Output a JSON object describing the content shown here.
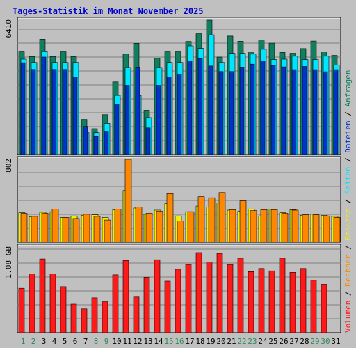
{
  "chart_data": {
    "type": "bar",
    "title": "Tages-Statistik im Monat November 2025",
    "categories": [
      "1",
      "2",
      "3",
      "4",
      "5",
      "6",
      "7",
      "8",
      "9",
      "10",
      "11",
      "12",
      "13",
      "14",
      "15",
      "16",
      "17",
      "18",
      "19",
      "20",
      "21",
      "22",
      "23",
      "24",
      "25",
      "26",
      "27",
      "28",
      "29",
      "30",
      "31"
    ],
    "weekend_days": [
      "1",
      "2",
      "8",
      "9",
      "15",
      "16",
      "22",
      "23",
      "29",
      "30"
    ],
    "panels": [
      {
        "id": "top",
        "ylabel": "6410",
        "ylim": [
          0,
          6410
        ],
        "series": [
          {
            "name": "Anfragen",
            "color": "#0f7f5f",
            "values": [
              4930,
              4670,
              5500,
              4670,
              4930,
              4670,
              1670,
              1230,
              1900,
              3460,
              4790,
              5300,
              2110,
              4590,
              4930,
              4930,
              5390,
              5760,
              6410,
              4650,
              5650,
              5400,
              4860,
              5460,
              5310,
              4870,
              4830,
              5050,
              5410,
              4900,
              4730
            ]
          },
          {
            "name": "Seiten",
            "color": "#00e5ff",
            "values": [
              4550,
              4390,
              4940,
              4390,
              4390,
              4390,
              1040,
              1040,
              1480,
              2820,
              4150,
              2810,
              1760,
              4150,
              4390,
              4390,
              5180,
              5060,
              5710,
              4390,
              4830,
              4830,
              4790,
              5020,
              4530,
              4550,
              4690,
              4530,
              4530,
              4690,
              4260
            ]
          },
          {
            "name": "Dateien",
            "color": "#0033cc",
            "values": [
              4380,
              4060,
              4650,
              4060,
              4060,
              3700,
              1340,
              860,
              1110,
              2400,
              3300,
              4170,
              1270,
              3300,
              3700,
              3830,
              4460,
              4570,
              4220,
              3960,
              3960,
              4170,
              4310,
              4460,
              4250,
              4180,
              4050,
              4200,
              4050,
              3950,
              4050
            ]
          }
        ]
      },
      {
        "id": "middle",
        "ylabel": "802",
        "ylim": [
          0,
          802
        ],
        "series": [
          {
            "name": "Besuche",
            "color": "#f0f000",
            "values": [
              285,
              245,
              290,
              295,
              240,
              255,
              260,
              265,
              240,
              315,
              500,
              330,
              270,
              310,
              375,
              255,
              295,
              350,
              340,
              380,
              310,
              300,
              320,
              255,
              320,
              285,
              315,
              260,
              270,
              260,
              250
            ]
          },
          {
            "name": "Rechner",
            "color": "#ff8800",
            "values": [
              280,
              250,
              280,
              320,
              240,
              230,
              270,
              250,
              215,
              320,
              802,
              340,
              280,
              300,
              470,
              205,
              295,
              440,
              430,
              480,
              315,
              400,
              305,
              315,
              315,
              280,
              310,
              265,
              265,
              255,
              240
            ]
          }
        ]
      },
      {
        "id": "bottom",
        "ylabel": "1.08 GB",
        "ylim": [
          0,
          1.08
        ],
        "series": [
          {
            "name": "Volumen",
            "color": "#ff1a1a",
            "values": [
              0.56,
              0.74,
              0.93,
              0.74,
              0.58,
              0.36,
              0.3,
              0.44,
              0.39,
              0.73,
              0.91,
              0.45,
              0.7,
              0.92,
              0.65,
              0.8,
              0.86,
              1.01,
              0.89,
              1.0,
              0.86,
              0.94,
              0.77,
              0.81,
              0.78,
              0.94,
              0.76,
              0.81,
              0.66,
              0.61,
              0
            ]
          }
        ]
      }
    ],
    "side_legend": [
      "Volumen",
      " / ",
      "Rechner",
      " / ",
      "Besuche",
      " / ",
      "Seiten",
      " / ",
      "Dateien",
      " / ",
      "Anfragen"
    ],
    "colors": {
      "background": "#c0c0c0",
      "title": "#0000cc",
      "weekday_label": "#000000",
      "weekend_label": "#2e8b57",
      "gridline": "#808080"
    }
  }
}
